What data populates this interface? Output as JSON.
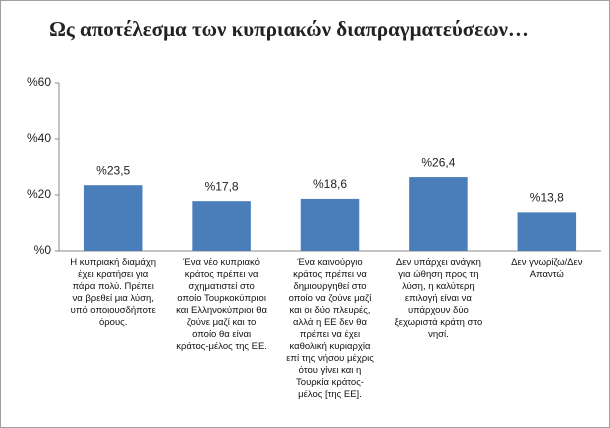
{
  "chart_data": {
    "type": "bar",
    "title": "Ως αποτέλεσμα των κυπριακών διαπραγματεύσεων…",
    "categories": [
      "Η κυπριακή διαμάχη έχει κρατήσει για πάρα πολύ. Πρέπει να βρεθεί μια λύση, υπό οποιουσδήποτε όρους.",
      "Ένα νέο κυπριακό κράτος πρέπει να σχηματιστεί στο οποίο Τουρκοκύπριοι και Ελληνοκύπριοι θα ζούνε μαζί και το οποίο θα είναι κράτος-μέλος της ΕΕ.",
      "Ένα καινούργιο κράτος πρέπει να δημιουργηθεί στο οποίο να ζούνε μαζί και οι δύο πλευρές, αλλά η ΕΕ δεν θα πρέπει να έχει καθολική κυριαρχία επί της νήσου μέχρις ότου γίνει και η Τουρκία κράτος-μέλος [της ΕΕ].",
      "Δεν υπάρχει ανάγκη για ώθηση προς τη λύση, η καλύτερη επιλογή είναι να υπάρχουν δύο ξεχωριστά κράτη στο νησί.",
      "Δεν γνωρίζω/Δεν Απαντώ"
    ],
    "values": [
      23.5,
      17.8,
      18.6,
      26.4,
      13.8
    ],
    "value_labels": [
      "%23,5",
      "%17,8",
      "%18,6",
      "%26,4",
      "%13,8"
    ],
    "color": "#4a7ebb",
    "ylim": [
      0,
      60
    ],
    "yticks": [
      {
        "value": 0,
        "label": "%0"
      },
      {
        "value": 20,
        "label": "%20"
      },
      {
        "value": 40,
        "label": "%40"
      },
      {
        "value": 60,
        "label": "%60"
      }
    ],
    "grid": false
  }
}
